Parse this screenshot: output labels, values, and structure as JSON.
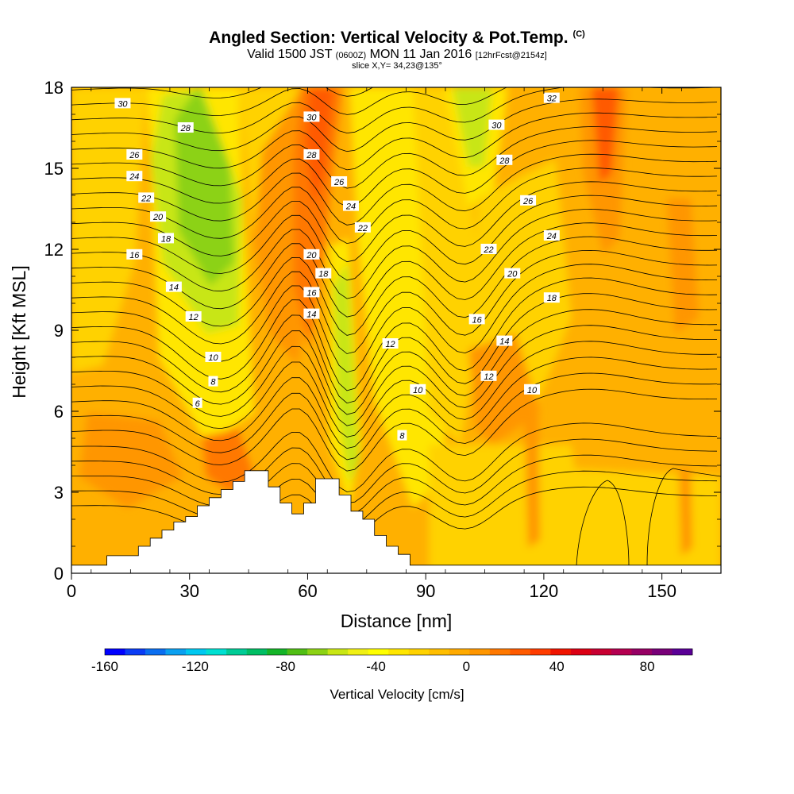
{
  "header": {
    "title": "Angled Section: Vertical Velocity & Pot.Temp.",
    "copyright": "(C)",
    "valid_prefix": "Valid 1500 JST",
    "valid_utc": "(0600Z)",
    "valid_date": "MON 11 Jan 2016",
    "forecast": "[12hrFcst@2154z]",
    "slice": "slice X,Y= 34,23@135°"
  },
  "colorbar": {
    "label": "Vertical Velocity [cm/s]",
    "ticks": [
      "-160",
      "-120",
      "-80",
      "-40",
      "0",
      "40",
      "80"
    ],
    "colors": [
      "#0000ff",
      "#0a3cf5",
      "#0a6ef0",
      "#0aa0f0",
      "#00c8f0",
      "#00e0d2",
      "#00cc96",
      "#00be64",
      "#14b428",
      "#50be14",
      "#8cd214",
      "#c8e614",
      "#f0f014",
      "#ffff00",
      "#ffe600",
      "#ffd200",
      "#ffbe00",
      "#ffaa00",
      "#ff9600",
      "#ff7800",
      "#ff5a00",
      "#ff3c00",
      "#f01400",
      "#dc0014",
      "#c80032",
      "#b40050",
      "#960064",
      "#780078",
      "#5a0096"
    ]
  },
  "chart_data": {
    "type": "heatmap",
    "title": "Angled Section: Vertical Velocity & Pot.Temp.",
    "xlabel": "Distance [nm]",
    "ylabel": "Height [Kft MSL]",
    "xlim": [
      0,
      165
    ],
    "ylim": [
      0,
      18
    ],
    "xticks": [
      "0",
      "30",
      "60",
      "90",
      "120",
      "150"
    ],
    "yticks": [
      "0",
      "3",
      "6",
      "9",
      "12",
      "15",
      "18"
    ],
    "colorbar_label": "Vertical Velocity [cm/s]",
    "colorbar_range": [
      -160,
      100
    ],
    "contour_variable": "Pot.Temp.",
    "contour_labels": [
      {
        "text": "30",
        "x": 13,
        "y": 17.4
      },
      {
        "text": "28",
        "x": 29,
        "y": 16.5
      },
      {
        "text": "26",
        "x": 16,
        "y": 15.5
      },
      {
        "text": "24",
        "x": 16,
        "y": 14.7
      },
      {
        "text": "22",
        "x": 19,
        "y": 13.9
      },
      {
        "text": "20",
        "x": 22,
        "y": 13.2
      },
      {
        "text": "18",
        "x": 24,
        "y": 12.4
      },
      {
        "text": "16",
        "x": 16,
        "y": 11.8
      },
      {
        "text": "14",
        "x": 26,
        "y": 10.6
      },
      {
        "text": "12",
        "x": 31,
        "y": 9.5
      },
      {
        "text": "10",
        "x": 36,
        "y": 8.0
      },
      {
        "text": "8",
        "x": 36,
        "y": 7.1
      },
      {
        "text": "6",
        "x": 32,
        "y": 6.3
      },
      {
        "text": "30",
        "x": 61,
        "y": 16.9
      },
      {
        "text": "28",
        "x": 61,
        "y": 15.5
      },
      {
        "text": "26",
        "x": 68,
        "y": 14.5
      },
      {
        "text": "24",
        "x": 71,
        "y": 13.6
      },
      {
        "text": "22",
        "x": 74,
        "y": 12.8
      },
      {
        "text": "20",
        "x": 61,
        "y": 11.8
      },
      {
        "text": "18",
        "x": 64,
        "y": 11.1
      },
      {
        "text": "16",
        "x": 61,
        "y": 10.4
      },
      {
        "text": "14",
        "x": 61,
        "y": 9.6
      },
      {
        "text": "12",
        "x": 81,
        "y": 8.5
      },
      {
        "text": "10",
        "x": 88,
        "y": 6.8
      },
      {
        "text": "8",
        "x": 84,
        "y": 5.1
      },
      {
        "text": "32",
        "x": 122,
        "y": 17.6
      },
      {
        "text": "30",
        "x": 108,
        "y": 16.6
      },
      {
        "text": "28",
        "x": 110,
        "y": 15.3
      },
      {
        "text": "26",
        "x": 116,
        "y": 13.8
      },
      {
        "text": "24",
        "x": 122,
        "y": 12.5
      },
      {
        "text": "22",
        "x": 106,
        "y": 12.0
      },
      {
        "text": "20",
        "x": 112,
        "y": 11.1
      },
      {
        "text": "18",
        "x": 122,
        "y": 10.2
      },
      {
        "text": "16",
        "x": 103,
        "y": 9.4
      },
      {
        "text": "14",
        "x": 110,
        "y": 8.6
      },
      {
        "text": "12",
        "x": 106,
        "y": 7.3
      },
      {
        "text": "10",
        "x": 117,
        "y": 6.8
      }
    ]
  }
}
